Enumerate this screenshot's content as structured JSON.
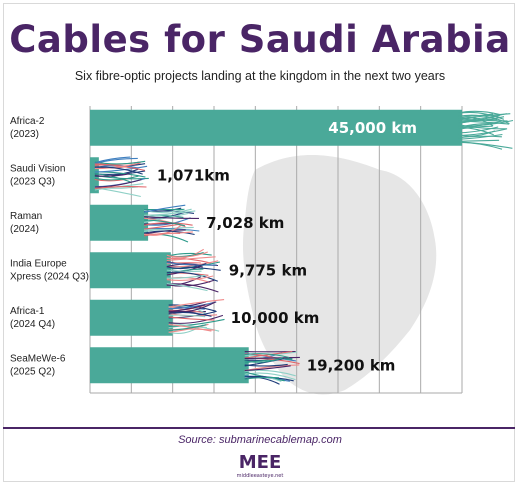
{
  "title": "Cables for Saudi Arabia",
  "subtitle": "Six fibre-optic projects landing at the kingdom in the next two years",
  "source": "Source: submarinecablemap.com",
  "logo": {
    "mark": "MEE",
    "tagline": "middleeasteye.net"
  },
  "colors": {
    "bar": "#4aa999",
    "title": "#4a2566",
    "grid": "#aaaaaa",
    "map": "#e6e6e6",
    "fibres": [
      "#e0676b",
      "#4a2566",
      "#3f7fbf",
      "#2c9a8a",
      "#8fd0c6",
      "#f08a8a",
      "#1f3d7a"
    ]
  },
  "chart_data": {
    "type": "bar",
    "orientation": "horizontal",
    "xlim": [
      0,
      45000
    ],
    "grid": true,
    "categories": [
      [
        "Africa-2",
        "(2023)"
      ],
      [
        "Saudi Vision",
        "(2023 Q3)"
      ],
      [
        "Raman",
        "(2024)"
      ],
      [
        "India Europe",
        "Xpress (2024 Q3)"
      ],
      [
        "Africa-1",
        "(2024 Q4)"
      ],
      [
        "SeaMeWe-6",
        "(2025 Q2)"
      ]
    ],
    "values": [
      45000,
      1071,
      7028,
      9775,
      10000,
      19200
    ],
    "value_labels": [
      "45,000 km",
      "1,071km",
      "7,028 km",
      "9,775 km",
      "10,000 km",
      "19,200 km"
    ]
  }
}
